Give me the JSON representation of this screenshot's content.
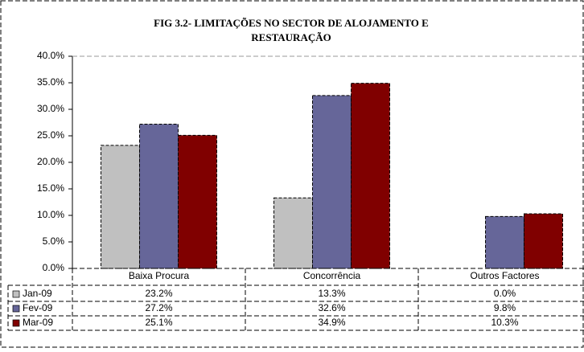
{
  "chart_data": {
    "type": "bar",
    "title": [
      "FIG 3.2- LIMITAÇÕES  NO SECTOR DE ALOJAMENTO E",
      "RESTAURAÇÃO"
    ],
    "categories": [
      "Baixa Procura",
      "Concorrência",
      "Outros Factores"
    ],
    "series": [
      {
        "name": "Jan-09",
        "color": "#c0c0c0",
        "values": [
          23.2,
          13.3,
          0.0
        ],
        "value_labels": [
          "23.2%",
          "13.3%",
          "0.0%"
        ]
      },
      {
        "name": "Fev-09",
        "color": "#666699",
        "values": [
          27.2,
          32.6,
          9.8
        ],
        "value_labels": [
          "27.2%",
          "32.6%",
          "9.8%"
        ]
      },
      {
        "name": "Mar-09",
        "color": "#800000",
        "values": [
          25.1,
          34.9,
          10.3
        ],
        "value_labels": [
          "25.1%",
          "34.9%",
          "10.3%"
        ]
      }
    ],
    "ylim": [
      0,
      40
    ],
    "yticks": [
      {
        "value": 0,
        "label": "0.0%"
      },
      {
        "value": 5,
        "label": "5.0%"
      },
      {
        "value": 10,
        "label": "10.0%"
      },
      {
        "value": 15,
        "label": "15.0%"
      },
      {
        "value": 20,
        "label": "20.0%"
      },
      {
        "value": 25,
        "label": "25.0%"
      },
      {
        "value": 30,
        "label": "30.0%"
      },
      {
        "value": 35,
        "label": "35.0%"
      },
      {
        "value": 40,
        "label": "40.0%"
      }
    ],
    "grid": false
  }
}
